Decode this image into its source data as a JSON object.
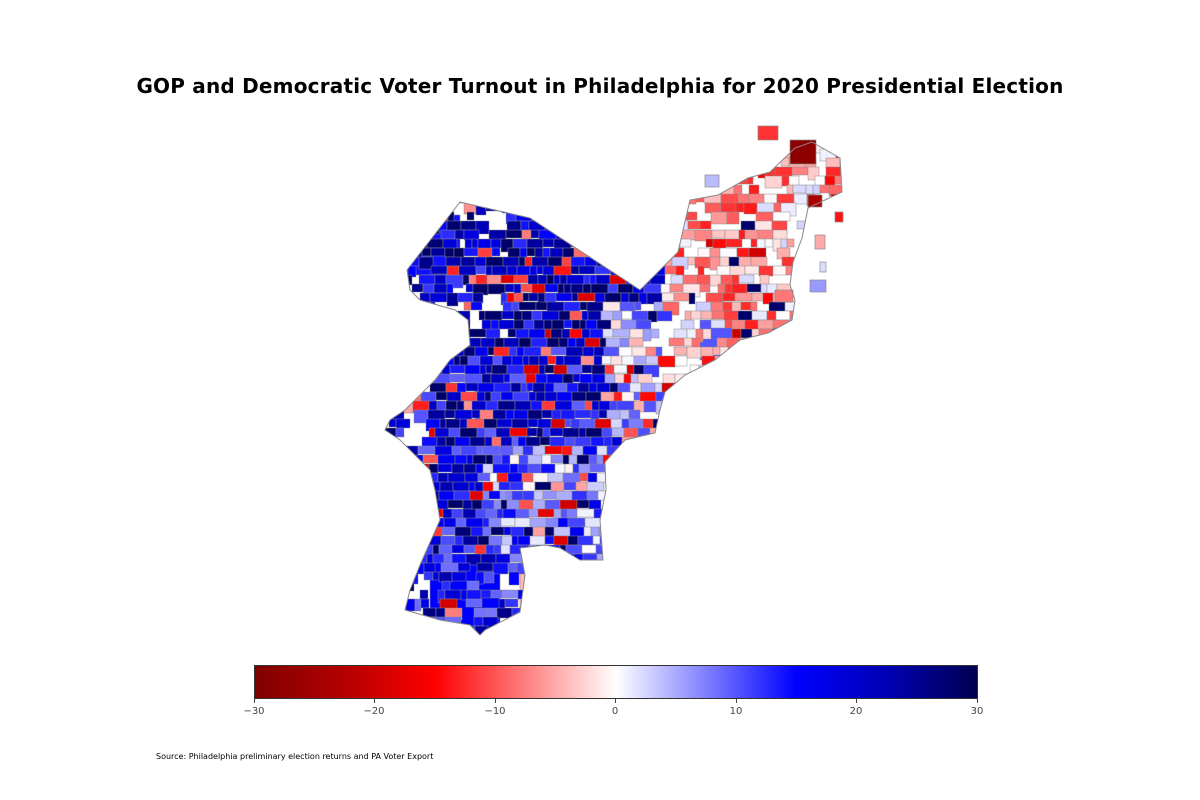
{
  "title": "GOP and Democratic Voter Turnout in Philadelphia for 2020 Presidential Election",
  "source": "Source: Philadelphia preliminary election returns and PA Voter Export",
  "colormap": {
    "name": "seismic (reversed)",
    "min": -30,
    "max": 30,
    "stops": [
      "#800000",
      "#b40000",
      "#ff0000",
      "#ff7f7f",
      "#ffffff",
      "#7f7fff",
      "#0000ff",
      "#0000b4",
      "#000050"
    ]
  },
  "colorbar": {
    "ticks": [
      -30,
      -20,
      -10,
      0,
      10,
      20,
      30
    ],
    "tick_labels": [
      "−30",
      "−20",
      "−10",
      "0",
      "10",
      "20",
      "30"
    ],
    "orientation": "horizontal",
    "placement": "bottom"
  },
  "map": {
    "region": "Philadelphia",
    "unit": "election divisions",
    "boundary_color": "#888888"
  }
}
